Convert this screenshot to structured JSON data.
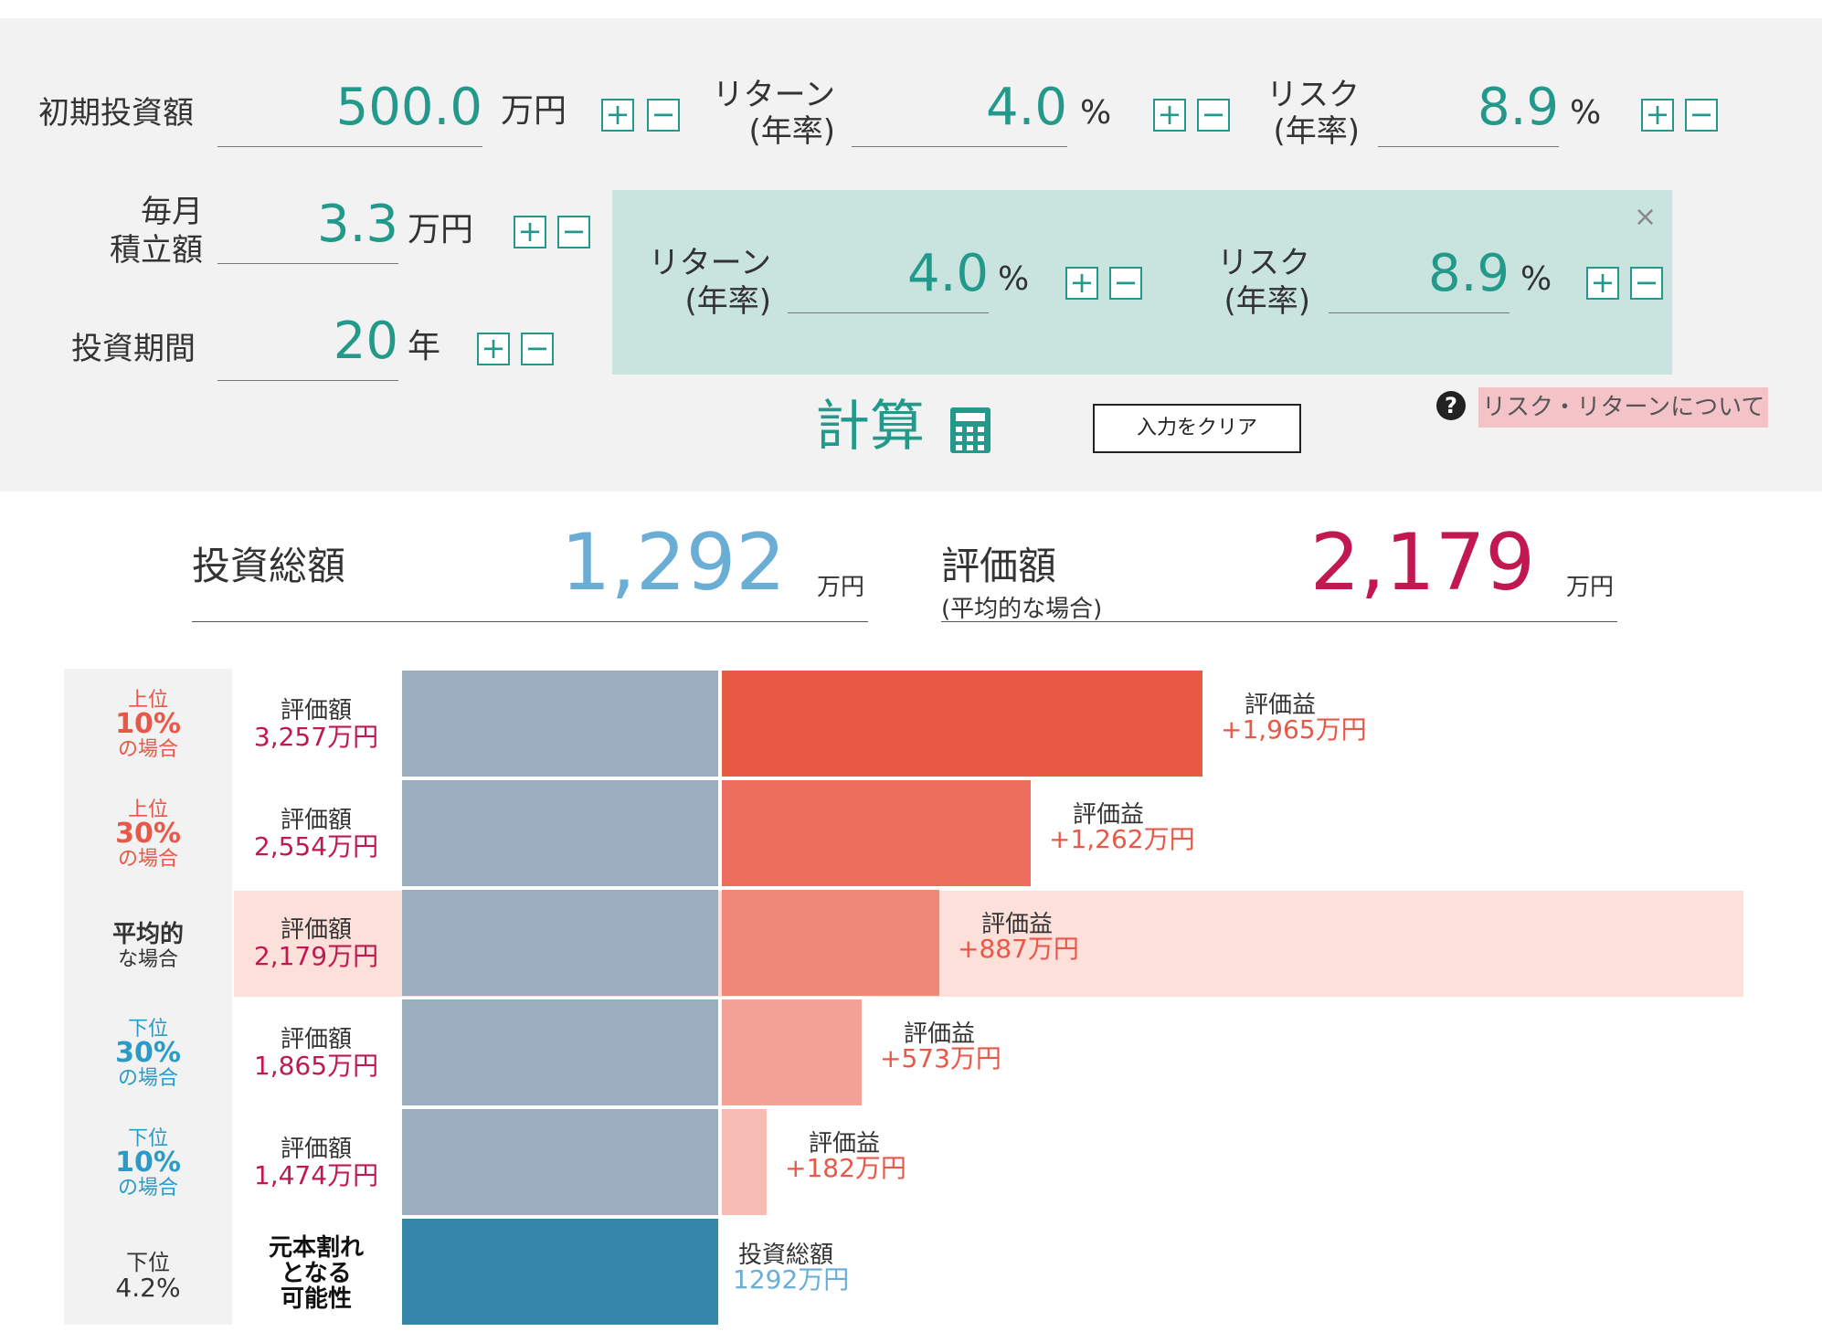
{
  "inputs": {
    "initial": {
      "label": "初期投資額",
      "value": "500.0",
      "unit": "万円"
    },
    "return_main": {
      "label_1": "リターン",
      "label_2": "(年率)",
      "value": "4.0",
      "unit": "%"
    },
    "risk_main": {
      "label_1": "リスク",
      "label_2": "(年率)",
      "value": "8.9",
      "unit": "%"
    },
    "monthly": {
      "label_1": "毎月",
      "label_2": "積立額",
      "value": "3.3",
      "unit": "万円"
    },
    "period": {
      "label": "投資期間",
      "value": "20",
      "unit": "年"
    },
    "plus": "+",
    "minus": "−"
  },
  "assumption_panel": {
    "return": {
      "label_1": "リターン",
      "label_2": "(年率)",
      "value": "4.0",
      "unit": "%"
    },
    "risk": {
      "label_1": "リスク",
      "label_2": "(年率)",
      "value": "8.9",
      "unit": "%"
    },
    "close": "×"
  },
  "actions": {
    "calculate": "計算",
    "clear": "入力をクリア",
    "help_icon": "?",
    "help_link": "リスク・リターンについて"
  },
  "summary": {
    "total_label": "投資総額",
    "total_value": "1,292",
    "total_unit": "万円",
    "eval_label": "評価額",
    "eval_sub": "(平均的な場合)",
    "eval_value": "2,179",
    "eval_unit": "万円",
    "colors": {
      "total": "#6aaed6",
      "eval": "#c0184f"
    }
  },
  "scenarios": [
    {
      "top": "上位",
      "big": "10%",
      "bottom": "の場合",
      "label_color": "#e85848",
      "eval_label": "評価額",
      "eval_value": "3,257万円",
      "gain_label": "評価益",
      "gain_value": "+1,965万円",
      "principal": 1292,
      "gain": 1965,
      "bar_color": "#e85a43"
    },
    {
      "top": "上位",
      "big": "30%",
      "bottom": "の場合",
      "label_color": "#e85848",
      "eval_label": "評価額",
      "eval_value": "2,554万円",
      "gain_label": "評価益",
      "gain_value": "+1,262万円",
      "principal": 1292,
      "gain": 1262,
      "bar_color": "#ee6e5e"
    },
    {
      "top": "平均的",
      "big": "",
      "bottom": "な場合",
      "label_color": "#333333",
      "eval_label": "評価額",
      "eval_value": "2,179万円",
      "gain_label": "評価益",
      "gain_value": "+887万円",
      "principal": 1292,
      "gain": 887,
      "bar_color": "#f08878",
      "highlight": true
    },
    {
      "top": "下位",
      "big": "30%",
      "bottom": "の場合",
      "label_color": "#2a9bc6",
      "eval_label": "評価額",
      "eval_value": "1,865万円",
      "gain_label": "評価益",
      "gain_value": "+573万円",
      "principal": 1292,
      "gain": 573,
      "bar_color": "#f4a296"
    },
    {
      "top": "下位",
      "big": "10%",
      "bottom": "の場合",
      "label_color": "#2a9bc6",
      "eval_label": "評価額",
      "eval_value": "1,474万円",
      "gain_label": "評価益",
      "gain_value": "+182万円",
      "principal": 1292,
      "gain": 182,
      "bar_color": "#f7bcb4"
    }
  ],
  "loss_row": {
    "top": "下位",
    "value": "4.2%",
    "label_1": "元本割れ",
    "label_2": "となる",
    "label_3": "可能性",
    "total_label": "投資総額",
    "total_value": "1292万円",
    "principal": 1292,
    "bar_color": "#3487a9"
  },
  "chart_colors": {
    "principal": "#9aaebf"
  }
}
